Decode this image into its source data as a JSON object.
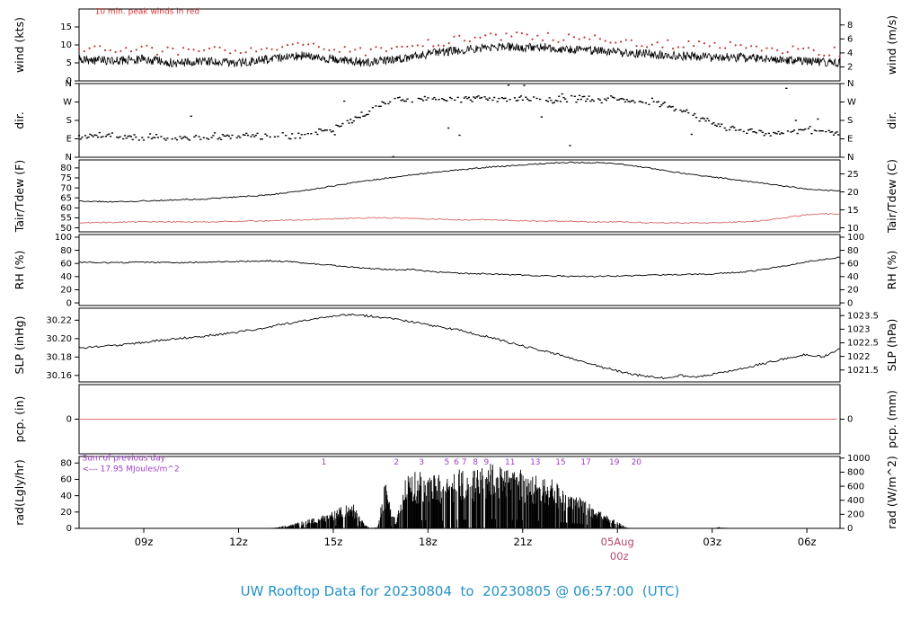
{
  "caption": "UW Rooftop Data for 20230804  to  20230805 @ 06:57:00  (UTC)",
  "colors": {
    "black": "#000000",
    "peak_red": "#c03a3a",
    "dew_red": "#d96666",
    "pcp_red": "#e07070",
    "annot_red": "#e03535",
    "magenta": "#b8476b",
    "purple": "#9e3ec9",
    "caption_blue": "#2492c8"
  },
  "x_axis": {
    "start_hour": 6.95,
    "end_hour": 31.05,
    "ticks": [
      {
        "h": 9,
        "label": "09z"
      },
      {
        "h": 12,
        "label": "12z"
      },
      {
        "h": 15,
        "label": "15z"
      },
      {
        "h": 18,
        "label": "18z"
      },
      {
        "h": 21,
        "label": "21z"
      },
      {
        "h": 24,
        "label": "05Aug",
        "label2": "00z",
        "magenta": true
      },
      {
        "h": 27,
        "label": "03z"
      },
      {
        "h": 30,
        "label": "06z"
      }
    ]
  },
  "chart_data": [
    {
      "id": "wind",
      "type": "line",
      "ylabel_left": "wind (kts)",
      "ylabel_right": "wind (m/s)",
      "ylim": [
        0,
        20
      ],
      "left_ticks": [
        {
          "v": 0,
          "label": "0"
        },
        {
          "v": 5,
          "label": "5"
        },
        {
          "v": 10,
          "label": "10"
        },
        {
          "v": 15,
          "label": "15"
        }
      ],
      "right_ticks": [
        {
          "v": 3.89,
          "label": "2"
        },
        {
          "v": 7.78,
          "label": "4"
        },
        {
          "v": 11.67,
          "label": "6"
        },
        {
          "v": 15.56,
          "label": "8"
        }
      ],
      "series": [
        {
          "name": "wind-speed",
          "style": "line",
          "color": "#000000",
          "width": 0.8,
          "noise": 1.25,
          "step": 0.02,
          "t": [
            7,
            8,
            9,
            10,
            11,
            12,
            13,
            13.5,
            14,
            14.5,
            15,
            15.5,
            16,
            16.5,
            17,
            17.5,
            18,
            18.5,
            19,
            19.5,
            20,
            20.5,
            21,
            21.5,
            22,
            23,
            24,
            25,
            26,
            27,
            28,
            29,
            30,
            31
          ],
          "v": [
            6,
            5.5,
            6,
            5,
            5.5,
            5,
            6,
            6.5,
            7,
            6.5,
            6,
            5.5,
            5,
            5.5,
            6,
            6.5,
            7.5,
            8,
            8.5,
            9,
            9.5,
            9.5,
            9,
            9.5,
            9,
            8.5,
            8,
            7.5,
            7,
            6.5,
            6.5,
            6,
            5.5,
            5
          ]
        },
        {
          "name": "peak-wind",
          "style": "dots",
          "color": "#c03a3a",
          "noise": 1.3,
          "step": 0.165,
          "t": [
            7,
            8,
            9,
            10,
            11,
            12,
            13,
            13.5,
            14,
            14.5,
            15,
            15.5,
            16,
            16.5,
            17,
            17.5,
            18,
            18.5,
            19,
            19.5,
            20,
            20.5,
            21,
            21.5,
            22,
            23,
            24,
            25,
            26,
            27,
            28,
            29,
            30,
            31
          ],
          "v": [
            9,
            8.5,
            9,
            8,
            8.5,
            8,
            9,
            9.5,
            10,
            9.5,
            9,
            8.5,
            8,
            8.5,
            9,
            9.5,
            10.5,
            11,
            11.5,
            12,
            12.5,
            12.5,
            12,
            12.5,
            12,
            11.5,
            11,
            10.5,
            10,
            9.5,
            9.5,
            9,
            8.5,
            8
          ]
        }
      ],
      "annotations": [
        {
          "text": "10 min. peak winds in red",
          "color": "#e03535",
          "t": 7.45,
          "v": 18.6,
          "size": 9
        }
      ]
    },
    {
      "id": "dir",
      "type": "scatter",
      "ylabel_left": "dir.",
      "ylabel_right": "dir.",
      "ylim": [
        0,
        360
      ],
      "left_ticks": [
        {
          "v": 360,
          "label": "N"
        },
        {
          "v": 270,
          "label": "W"
        },
        {
          "v": 180,
          "label": "S"
        },
        {
          "v": 90,
          "label": "E"
        },
        {
          "v": 0,
          "label": "N"
        }
      ],
      "right_ticks": [
        {
          "v": 360,
          "label": "N"
        },
        {
          "v": 270,
          "label": "W"
        },
        {
          "v": 180,
          "label": "S"
        },
        {
          "v": 90,
          "label": "E"
        },
        {
          "v": 0,
          "label": "N"
        }
      ],
      "series": [
        {
          "name": "wind-direction",
          "style": "scatter",
          "color": "#000000",
          "scatter": 20,
          "gap": 0.22,
          "outlier": 0.04,
          "step": 0.05,
          "t": [
            7,
            8,
            9,
            10,
            11,
            12,
            13,
            14,
            14.5,
            15,
            15.5,
            16,
            16.5,
            17,
            18,
            19,
            20,
            21,
            22,
            23,
            24,
            25,
            25.5,
            26,
            26.5,
            27,
            28,
            29,
            30,
            31
          ],
          "v": [
            100,
            105,
            100,
            95,
            100,
            105,
            100,
            110,
            120,
            140,
            170,
            210,
            250,
            280,
            285,
            280,
            290,
            285,
            280,
            285,
            280,
            275,
            260,
            230,
            200,
            160,
            130,
            120,
            135,
            115
          ]
        }
      ]
    },
    {
      "id": "temp",
      "type": "line",
      "ylabel_left": "Tair/Tdew (F)",
      "ylabel_right": "Tair/Tdew (C)",
      "ylim": [
        48,
        84
      ],
      "left_ticks": [
        {
          "v": 50,
          "label": "50"
        },
        {
          "v": 55,
          "label": "55"
        },
        {
          "v": 60,
          "label": "60"
        },
        {
          "v": 65,
          "label": "65"
        },
        {
          "v": 70,
          "label": "70"
        },
        {
          "v": 75,
          "label": "75"
        },
        {
          "v": 80,
          "label": "80"
        }
      ],
      "right_ticks": [
        {
          "v": 50,
          "label": "10"
        },
        {
          "v": 59,
          "label": "15"
        },
        {
          "v": 68,
          "label": "20"
        },
        {
          "v": 77,
          "label": "25"
        }
      ],
      "series": [
        {
          "name": "air-temperature",
          "style": "line",
          "color": "#000000",
          "width": 0.9,
          "noise": 0.3,
          "step": 0.05,
          "t": [
            7,
            8,
            9,
            10,
            11,
            12,
            13,
            14,
            15,
            16,
            17,
            18,
            19,
            20,
            21,
            21.5,
            22,
            22.5,
            23,
            23.5,
            24,
            24.5,
            25,
            26,
            27,
            28,
            29,
            30,
            30.5,
            31
          ],
          "v": [
            63.5,
            63,
            63.5,
            64,
            64.5,
            65.5,
            66.5,
            68.5,
            71,
            73.5,
            75.5,
            77.5,
            79,
            80.5,
            81.5,
            82,
            82.5,
            82.8,
            82.5,
            82.8,
            82,
            81,
            80,
            77.5,
            75.5,
            73.5,
            71.5,
            69.5,
            69,
            68.5
          ]
        },
        {
          "name": "dew-point",
          "style": "line",
          "color": "#d96666",
          "width": 0.9,
          "noise": 0.3,
          "step": 0.05,
          "t": [
            7,
            9,
            11,
            13,
            14,
            15,
            16,
            17,
            18,
            19,
            20,
            21,
            22,
            23,
            24,
            25,
            26,
            27,
            28,
            28.5,
            29,
            29.5,
            30,
            30.5,
            31
          ],
          "v": [
            52.5,
            53,
            53,
            53.5,
            54,
            54.5,
            55,
            55,
            54.5,
            54,
            54,
            53.5,
            53.5,
            53,
            53,
            52.5,
            52.5,
            52.5,
            53,
            53.5,
            54.5,
            55.5,
            56.5,
            57,
            57
          ]
        }
      ]
    },
    {
      "id": "rh",
      "type": "line",
      "ylabel_left": "RH (%)",
      "ylabel_right": "RH (%)",
      "ylim": [
        -4,
        104
      ],
      "left_ticks": [
        {
          "v": 0,
          "label": "0"
        },
        {
          "v": 20,
          "label": "20"
        },
        {
          "v": 40,
          "label": "40"
        },
        {
          "v": 60,
          "label": "60"
        },
        {
          "v": 80,
          "label": "80"
        },
        {
          "v": 100,
          "label": "100"
        }
      ],
      "right_ticks": [
        {
          "v": 0,
          "label": "0"
        },
        {
          "v": 20,
          "label": "20"
        },
        {
          "v": 40,
          "label": "40"
        },
        {
          "v": 60,
          "label": "60"
        },
        {
          "v": 80,
          "label": "80"
        },
        {
          "v": 100,
          "label": "100"
        }
      ],
      "series": [
        {
          "name": "relative-humidity",
          "style": "line",
          "color": "#000000",
          "width": 0.9,
          "noise": 1.0,
          "step": 0.05,
          "t": [
            7,
            8,
            9,
            10,
            11,
            12,
            13,
            13.5,
            14,
            15,
            16,
            17,
            17.5,
            18,
            19,
            20,
            21,
            22,
            23,
            24,
            25,
            26,
            27,
            28,
            28.5,
            29,
            29.5,
            30,
            30.5,
            31
          ],
          "v": [
            62,
            61,
            62,
            61,
            62,
            63,
            64,
            63,
            61,
            57,
            53,
            50,
            51,
            48,
            45,
            44,
            42,
            41,
            40,
            41,
            42,
            43,
            44,
            47,
            50,
            54,
            58,
            63,
            66,
            69
          ]
        }
      ]
    },
    {
      "id": "slp",
      "type": "line",
      "ylabel_left": "SLP (inHg)",
      "ylabel_right": "SLP (hPa)",
      "ylim": [
        30.153,
        30.233
      ],
      "left_ticks": [
        {
          "v": 30.16,
          "label": "30.16"
        },
        {
          "v": 30.18,
          "label": "30.18"
        },
        {
          "v": 30.2,
          "label": "30.20"
        },
        {
          "v": 30.22,
          "label": "30.22"
        }
      ],
      "right_ticks": [
        {
          "v": 30.225,
          "label": "1023.5"
        },
        {
          "v": 30.2102,
          "label": "1023"
        },
        {
          "v": 30.1954,
          "label": "1022.5"
        },
        {
          "v": 30.1807,
          "label": "1022"
        },
        {
          "v": 30.1659,
          "label": "1021.5"
        }
      ],
      "series": [
        {
          "name": "sea-level-pressure",
          "style": "line",
          "color": "#000000",
          "width": 0.9,
          "noise": 0.0012,
          "step": 0.05,
          "t": [
            7,
            8,
            9,
            10,
            11,
            12,
            13,
            14,
            15,
            15.5,
            16,
            16.5,
            17,
            18,
            19,
            20,
            21,
            22,
            23,
            23.5,
            24,
            24.5,
            25,
            25.5,
            26,
            26.5,
            27,
            27.5,
            28,
            29,
            30,
            30.5,
            31
          ],
          "v": [
            30.19,
            30.192,
            30.196,
            30.2,
            30.203,
            30.207,
            30.213,
            30.219,
            30.224,
            30.226,
            30.225,
            30.223,
            30.221,
            30.215,
            30.209,
            30.201,
            30.192,
            30.184,
            30.174,
            30.169,
            30.165,
            30.161,
            30.159,
            30.157,
            30.16,
            30.158,
            30.161,
            30.164,
            30.168,
            30.176,
            30.183,
            30.18,
            30.188
          ]
        }
      ]
    },
    {
      "id": "pcp",
      "type": "line",
      "ylabel_left": "pcp. (in)",
      "ylabel_right": "pcp. (mm)",
      "ylim": [
        -1,
        1
      ],
      "left_ticks": [
        {
          "v": 0,
          "label": "0"
        }
      ],
      "right_ticks": [
        {
          "v": 0,
          "label": "0"
        }
      ],
      "series": [
        {
          "name": "precipitation",
          "style": "line",
          "color": "#e07070",
          "width": 0.9,
          "noise": 0,
          "step": 1,
          "t": [
            7,
            31
          ],
          "v": [
            0,
            0
          ]
        }
      ]
    },
    {
      "id": "rad",
      "type": "bar",
      "ylabel_left": "rad(Lgly/hr)",
      "ylabel_right": "rad (W/m^2)",
      "ylim": [
        0,
        88
      ],
      "left_ticks": [
        {
          "v": 0,
          "label": "0"
        },
        {
          "v": 20,
          "label": "20"
        },
        {
          "v": 40,
          "label": "40"
        },
        {
          "v": 60,
          "label": "60"
        },
        {
          "v": 80,
          "label": "80"
        }
      ],
      "right_ticks": [
        {
          "v": 86,
          "label": "1000"
        },
        {
          "v": 68.8,
          "label": "800"
        },
        {
          "v": 51.6,
          "label": "600"
        },
        {
          "v": 34.4,
          "label": "400"
        },
        {
          "v": 17.2,
          "label": "200"
        },
        {
          "v": 0,
          "label": "0"
        }
      ],
      "series": [
        {
          "name": "solar-radiation",
          "style": "bars",
          "color": "#000000",
          "step": 0.018,
          "t": [
            7,
            13,
            13.3,
            13.6,
            14,
            14.3,
            14.6,
            15,
            15.3,
            15.6,
            15.8,
            16,
            16.2,
            16.4,
            16.55,
            16.7,
            16.85,
            17,
            17.1,
            17.3,
            17.5,
            18,
            18.5,
            19,
            19.3,
            19.6,
            20,
            20.3,
            20.6,
            21,
            21.5,
            22,
            22.3,
            22.6,
            23,
            23.3,
            23.6,
            24,
            24.2,
            24.4,
            27.1,
            27.2,
            27.35,
            27.5,
            31
          ],
          "v": [
            0,
            0,
            2,
            4,
            8,
            11,
            14,
            20,
            26,
            30,
            18,
            4,
            1,
            1,
            40,
            58,
            20,
            8,
            45,
            60,
            64,
            68,
            62,
            72,
            68,
            74,
            76,
            72,
            70,
            68,
            62,
            56,
            48,
            42,
            32,
            24,
            16,
            8,
            3,
            0,
            0,
            1.5,
            1,
            0,
            0
          ]
        }
      ],
      "annotations": [
        {
          "text": "Sum of previous day",
          "color": "#9e3ec9",
          "t": 7.05,
          "v": 83,
          "size": 9
        },
        {
          "text": "<--- 17.95 MJoules/m^2",
          "color": "#9e3ec9",
          "t": 7.05,
          "v": 70,
          "size": 9
        }
      ],
      "hour_marks": [
        {
          "label": "1",
          "t": 14.7
        },
        {
          "label": "2",
          "t": 17.0
        },
        {
          "label": "3",
          "t": 17.8
        },
        {
          "label": "5",
          "t": 18.6
        },
        {
          "label": "6",
          "t": 18.9
        },
        {
          "label": "7",
          "t": 19.15
        },
        {
          "label": "8",
          "t": 19.5
        },
        {
          "label": "9",
          "t": 19.85
        },
        {
          "label": "11",
          "t": 20.6
        },
        {
          "label": "13",
          "t": 21.4
        },
        {
          "label": "15",
          "t": 22.2
        },
        {
          "label": "17",
          "t": 23.0
        },
        {
          "label": "19",
          "t": 23.9
        },
        {
          "label": "20",
          "t": 24.6
        }
      ]
    }
  ]
}
